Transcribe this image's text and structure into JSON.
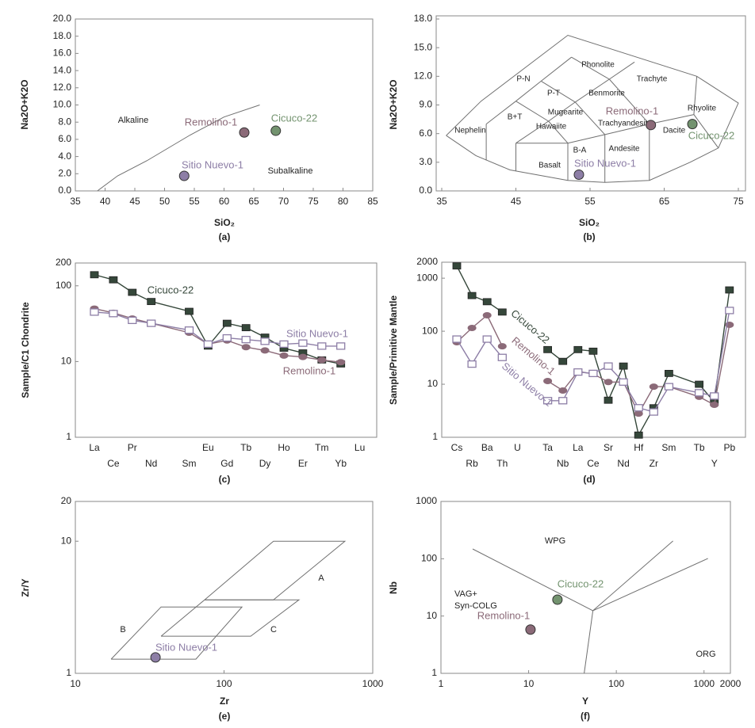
{
  "chart_data": [
    {
      "type": "scatter",
      "x_label": "SiO₂",
      "y_label": "Na2O+K2O",
      "caption": "(a)",
      "xlim": [
        35,
        85
      ],
      "xticks": [
        35,
        40,
        45,
        50,
        55,
        60,
        65,
        70,
        75,
        80,
        85
      ],
      "ylim": [
        0,
        20
      ],
      "yticks": [
        {
          "value": 0,
          "label": "0.0"
        },
        {
          "value": 2,
          "label": "2.0"
        },
        {
          "value": 4,
          "label": "4.0"
        },
        {
          "value": 6,
          "label": "6.0"
        },
        {
          "value": 8,
          "label": "8.0"
        },
        {
          "value": 10,
          "label": "10.0"
        },
        {
          "value": 12,
          "label": "12.0"
        },
        {
          "value": 14,
          "label": "14.0"
        },
        {
          "value": 16,
          "label": "16.0"
        },
        {
          "value": 18,
          "label": "18.0"
        },
        {
          "value": 20,
          "label": "20.0"
        }
      ],
      "annotations": [
        "Alkaline",
        "Subalkaline"
      ],
      "boundaries": [
        {
          "x": [
            38.7,
            42.1,
            47,
            54.3,
            60,
            66
          ],
          "y": [
            0,
            1.75,
            3.5,
            6.5,
            8.6,
            10
          ]
        }
      ],
      "series": [
        {
          "name": "Remolino-1",
          "color": "#8b6a78",
          "x": [
            63.4
          ],
          "values": [
            6.8
          ]
        },
        {
          "name": "Cicuco-22",
          "color": "#73936f",
          "x": [
            68.7
          ],
          "values": [
            7.0
          ]
        },
        {
          "name": "Sitio Nuevo-1",
          "color": "#8d7ea6",
          "x": [
            53.3
          ],
          "values": [
            1.75
          ]
        }
      ]
    },
    {
      "type": "scatter",
      "x_label": "SiO₂",
      "y_label": "Na2O+K2O",
      "caption": "(b)",
      "xlim": [
        35,
        75
      ],
      "xticks": [
        35,
        45,
        55,
        65,
        75
      ],
      "ylim": [
        0,
        18
      ],
      "yticks": [
        {
          "value": 0,
          "label": "0.0"
        },
        {
          "value": 3,
          "label": "3.0"
        },
        {
          "value": 6,
          "label": "6.0"
        },
        {
          "value": 9,
          "label": "9.0"
        },
        {
          "value": 12,
          "label": "12.0"
        },
        {
          "value": 15,
          "label": "15.0"
        },
        {
          "value": 18,
          "label": "18.0"
        }
      ],
      "annotations": [
        "Phonolite",
        "P-N",
        "Trachyte",
        "P-T",
        "Benmorite",
        "Mugearite",
        "B+T",
        "Hawaiite",
        "Trachyandesite",
        "Nephelin",
        "Rhyolite",
        "Dacite",
        "B-A",
        "Andesite",
        "Basalt"
      ],
      "boundaries": [
        {
          "x": [
            35.6,
            39.6,
            44.2,
            52,
            57,
            63,
            68.5,
            72.3,
            75,
            69.4,
            52,
            40.3,
            35.6
          ],
          "y": [
            5.8,
            3.7,
            2.2,
            1.1,
            0.9,
            1.1,
            3,
            4.5,
            9.2,
            12,
            16.3,
            9.4,
            5.8
          ]
        },
        {
          "x": [
            41,
            41
          ],
          "y": [
            3.2,
            7
          ]
        },
        {
          "x": [
            41,
            45,
            48.4,
            52.5
          ],
          "y": [
            7,
            9.4,
            11.5,
            14
          ]
        },
        {
          "x": [
            45,
            45
          ],
          "y": [
            2.1,
            5
          ]
        },
        {
          "x": [
            45,
            49.4,
            53,
            57.6,
            61
          ],
          "y": [
            5,
            7.3,
            9.3,
            11.7,
            13.5
          ]
        },
        {
          "x": [
            45,
            52,
            57,
            63,
            69
          ],
          "y": [
            5,
            5,
            5.9,
            7,
            8
          ]
        },
        {
          "x": [
            52,
            52
          ],
          "y": [
            1.1,
            5
          ]
        },
        {
          "x": [
            57,
            57
          ],
          "y": [
            0.9,
            5.9
          ]
        },
        {
          "x": [
            63,
            63
          ],
          "y": [
            1.1,
            7
          ]
        },
        {
          "x": [
            49.4,
            52
          ],
          "y": [
            7.3,
            5
          ]
        },
        {
          "x": [
            53,
            57
          ],
          "y": [
            9.3,
            5.9
          ]
        },
        {
          "x": [
            57.6,
            63
          ],
          "y": [
            11.7,
            7
          ]
        },
        {
          "x": [
            45,
            49.4
          ],
          "y": [
            9.4,
            7.3
          ]
        },
        {
          "x": [
            48.4,
            53
          ],
          "y": [
            11.5,
            9.3
          ]
        },
        {
          "x": [
            52.5,
            57.6
          ],
          "y": [
            14,
            11.7
          ]
        },
        {
          "x": [
            69,
            69.4
          ],
          "y": [
            8,
            12
          ]
        },
        {
          "x": [
            69,
            72.3
          ],
          "y": [
            8,
            4.5
          ]
        }
      ],
      "series": [
        {
          "name": "Remolino-1",
          "color": "#8b6a78",
          "x": [
            63.2
          ],
          "values": [
            6.9
          ]
        },
        {
          "name": "Cicuco-22",
          "color": "#73936f",
          "x": [
            68.8
          ],
          "values": [
            7.0
          ]
        },
        {
          "name": "Sitio Nuevo-1",
          "color": "#8d7ea6",
          "x": [
            53.5
          ],
          "values": [
            1.7
          ]
        }
      ]
    },
    {
      "type": "line",
      "log_y": true,
      "y_label": "Sample/C1 Chondrite",
      "caption": "(c)",
      "categories": [
        "La",
        "Ce",
        "Pr",
        "Nd",
        "Sm",
        "Eu",
        "Gd",
        "Tb",
        "Dy",
        "Ho",
        "Er",
        "Tm",
        "Yb",
        "Lu"
      ],
      "ylim": [
        1,
        200
      ],
      "yticks": [
        1,
        10,
        100,
        200
      ],
      "series": [
        {
          "name": "Cicuco-22",
          "color": "#35473a",
          "marker": "square",
          "values": [
            140,
            120,
            82,
            62,
            46,
            16,
            32,
            28,
            21,
            15,
            13,
            10.5,
            9.3,
            null
          ]
        },
        {
          "name": "Remolino-1",
          "color": "#8b6a78",
          "marker": "circle",
          "values": [
            50,
            44,
            37,
            32,
            24,
            17,
            19,
            15.5,
            14,
            12,
            11.5,
            10.5,
            9.8,
            null
          ]
        },
        {
          "name": "Sitio Nuevo-1",
          "color": "#8d7ea6",
          "marker": "open-square",
          "values": [
            45,
            43,
            35,
            32,
            26,
            17,
            20.5,
            19.5,
            18.5,
            17,
            17.5,
            16,
            16,
            null
          ]
        }
      ]
    },
    {
      "type": "line",
      "log_y": true,
      "y_label": "Sample/Primitive Mantle",
      "caption": "(d)",
      "categories": [
        "Cs",
        "Rb",
        "Ba",
        "Th",
        "U",
        "Ta",
        "Nb",
        "La",
        "Ce",
        "Sr",
        "Nd",
        "Hf",
        "Zr",
        "Sm",
        "Tb",
        "Y",
        "Pb"
      ],
      "ylim": [
        1,
        2000
      ],
      "yticks": [
        1,
        10,
        100,
        1000,
        2000
      ],
      "series": [
        {
          "name": "Cicuco-22",
          "color": "#35473a",
          "marker": "square",
          "values": [
            1700,
            470,
            360,
            230,
            null,
            45,
            27,
            45,
            42,
            5,
            22,
            1.1,
            3.6,
            16,
            10,
            4.6,
            600
          ]
        },
        {
          "name": "Remolino-1",
          "color": "#8b6a78",
          "marker": "circle",
          "values": [
            62,
            115,
            200,
            52,
            null,
            11.5,
            7.6,
            17.4,
            15.7,
            11,
            11,
            2.8,
            9,
            9,
            5.8,
            4.1,
            132
          ]
        },
        {
          "name": "Sitio Nuevo-1",
          "color": "#8d7ea6",
          "marker": "open-square",
          "values": [
            71,
            24,
            71,
            32,
            null,
            4.9,
            4.9,
            17,
            16,
            22,
            11,
            3.6,
            3,
            9,
            6.9,
            6,
            246
          ]
        }
      ]
    },
    {
      "type": "scatter",
      "log_x": true,
      "log_y": true,
      "x_label": "Zr",
      "y_label": "Zr/Y",
      "caption": "(e)",
      "xlim": [
        10,
        1000
      ],
      "xticks": [
        10,
        100,
        1000
      ],
      "ylim": [
        1,
        20
      ],
      "yticks": [
        1,
        10,
        20
      ],
      "annotations": [
        "A",
        "B",
        "C"
      ],
      "boundaries": [
        {
          "x": [
            74,
            215,
            650,
            215,
            74
          ],
          "y": [
            3.6,
            10,
            10,
            3.6,
            3.6
          ]
        },
        {
          "x": [
            17.4,
            37.7,
            132,
            64.7,
            17.4
          ],
          "y": [
            1.28,
            3.18,
            3.18,
            1.28,
            1.28
          ]
        },
        {
          "x": [
            37.7,
            74,
            319,
            151,
            37.7
          ],
          "y": [
            1.91,
            3.6,
            3.6,
            1.91,
            1.91
          ]
        }
      ],
      "series": [
        {
          "name": "Sitio Nuevo-1",
          "color": "#8d7ea6",
          "x": [
            34.6
          ],
          "values": [
            1.32
          ]
        }
      ]
    },
    {
      "type": "scatter",
      "log_x": true,
      "log_y": true,
      "x_label": "Y",
      "y_label": "Nb",
      "caption": "(f)",
      "xlim": [
        1,
        2000
      ],
      "xticks": [
        1,
        10,
        100,
        1000,
        2000
      ],
      "ylim": [
        1,
        1000
      ],
      "yticks": [
        1,
        10,
        100,
        1000
      ],
      "annotations": [
        "WPG",
        "VAG+",
        "Syn-COLG",
        "ORG"
      ],
      "boundaries": [
        {
          "x": [
            2.3,
            54
          ],
          "y": [
            148,
            12.4
          ]
        },
        {
          "x": [
            54,
            443
          ],
          "y": [
            12.4,
            204
          ]
        },
        {
          "x": [
            54,
            1107
          ],
          "y": [
            12.4,
            101
          ]
        },
        {
          "x": [
            54,
            43
          ],
          "y": [
            12.4,
            1
          ]
        }
      ],
      "series": [
        {
          "name": "Remolino-1",
          "color": "#8b6a78",
          "x": [
            10.5
          ],
          "values": [
            5.8
          ]
        },
        {
          "name": "Cicuco-22",
          "color": "#73936f",
          "x": [
            21.3
          ],
          "values": [
            19.3
          ]
        }
      ]
    }
  ]
}
